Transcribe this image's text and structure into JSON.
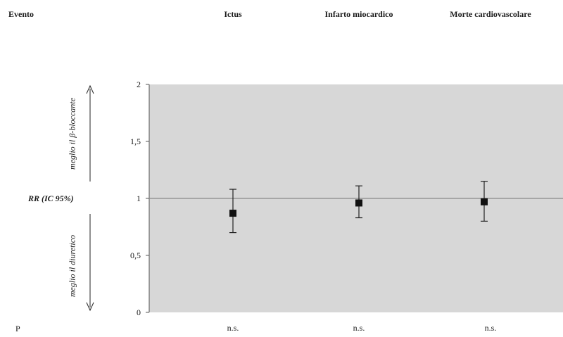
{
  "header": {
    "event_label": "Evento",
    "columns": [
      "Ictus",
      "Infarto miocardico",
      "Morte cardiovascolare"
    ]
  },
  "side_labels": {
    "upper": "meglio il β-bloccante",
    "lower": "meglio il diuretico",
    "rr": "RR (IC 95%)"
  },
  "p_row": {
    "label": "P",
    "values": [
      "n.s.",
      "n.s.",
      "n.s."
    ]
  },
  "chart_data": {
    "type": "scatter",
    "categories": [
      "Ictus",
      "Infarto miocardico",
      "Morte cardiovascolare"
    ],
    "values": [
      0.87,
      0.96,
      0.97
    ],
    "ci_lower": [
      0.7,
      0.83,
      0.8
    ],
    "ci_upper": [
      1.08,
      1.11,
      1.15
    ],
    "ylim": [
      0,
      2
    ],
    "yticks": [
      0,
      0.5,
      1,
      1.5,
      2
    ],
    "ytick_labels": [
      "0",
      "0,5",
      "1",
      "1,5",
      "2"
    ],
    "reference_line": 1,
    "grid": false,
    "plot_background": "#d7d7d7",
    "marker_color": "#111111"
  }
}
